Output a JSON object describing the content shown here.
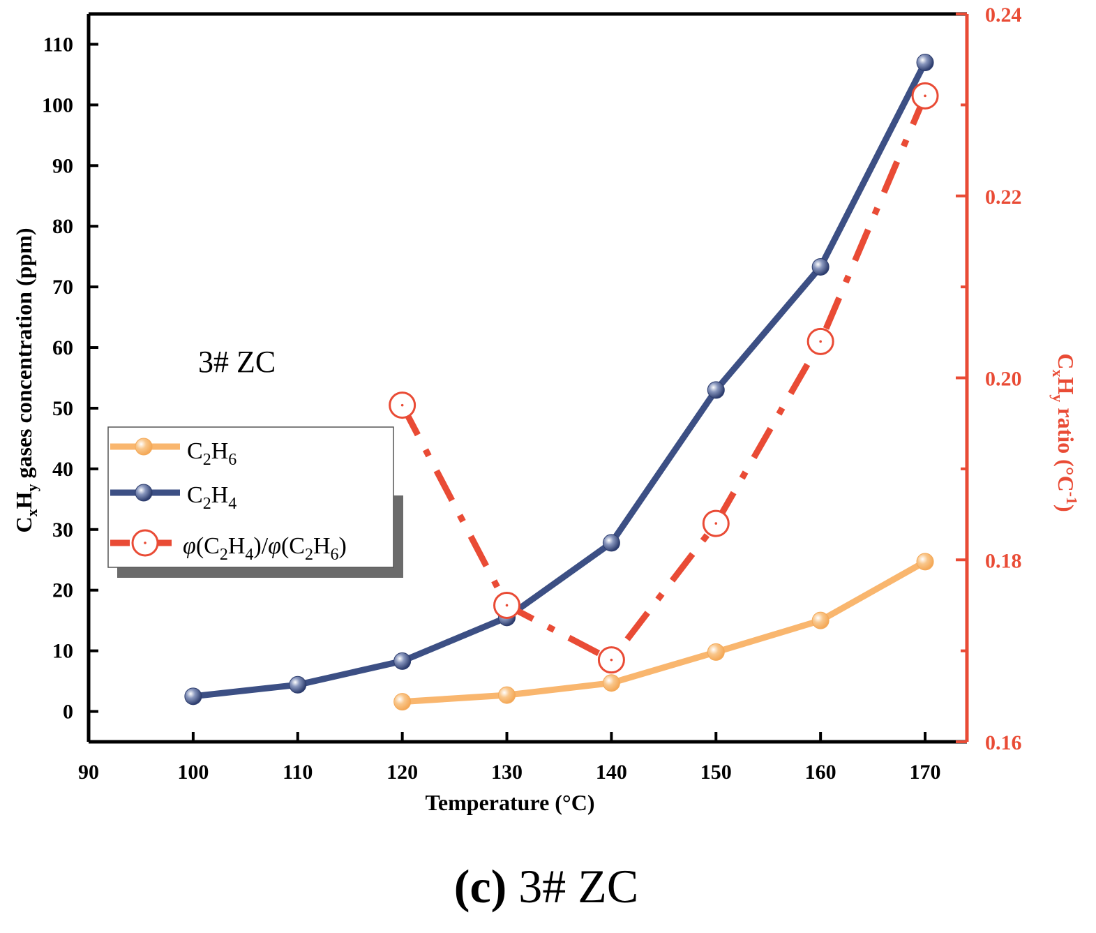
{
  "chart_data": {
    "type": "line",
    "title": "",
    "caption": {
      "prefix": "(c)",
      "text": "3# ZC"
    },
    "annotation": "3# ZC",
    "x": [
      100,
      110,
      120,
      130,
      140,
      150,
      160,
      170
    ],
    "xlabel": "Temperature (°C)",
    "xlim": [
      90,
      174
    ],
    "xticks": [
      90,
      100,
      110,
      120,
      130,
      140,
      150,
      160,
      170
    ],
    "ylabel": {
      "base": "C",
      "sub1": "x",
      "mid": "H",
      "sub2": "y",
      "rest": " gases concentration (ppm)"
    },
    "ylim": [
      -5,
      115
    ],
    "yticks": [
      0,
      10,
      20,
      30,
      40,
      50,
      60,
      70,
      80,
      90,
      100,
      110
    ],
    "y2label": {
      "base": "C",
      "sub1": "x",
      "mid": "H",
      "sub2": "y",
      "rest": " ratio (°C",
      "sup": "-1",
      "close": ")"
    },
    "y2lim": [
      0.16,
      0.24
    ],
    "y2ticks": [
      "0.16",
      "0.18",
      "0.20",
      "0.22",
      "0.24"
    ],
    "series": [
      {
        "name": "C2H6",
        "label": {
          "a": "C",
          "b": "2",
          "c": "H",
          "d": "6"
        },
        "axis": "left",
        "color": "#f9b66e",
        "style": "solid",
        "x": [
          120,
          130,
          140,
          150,
          160,
          170
        ],
        "values": [
          1.6,
          2.7,
          4.7,
          9.8,
          15.0,
          24.7
        ]
      },
      {
        "name": "C2H4",
        "label": {
          "a": "C",
          "b": "2",
          "c": "H",
          "d": "4"
        },
        "axis": "left",
        "color": "#3c4f84",
        "style": "solid",
        "x": [
          100,
          110,
          120,
          130,
          140,
          150,
          160,
          170
        ],
        "values": [
          2.5,
          4.4,
          8.3,
          15.5,
          27.8,
          53.0,
          73.3,
          107.0
        ]
      },
      {
        "name": "φ(C2H4)/φ(C2H6)",
        "axis": "right",
        "color": "#e94b35",
        "style": "dashdot",
        "x": [
          120,
          130,
          140,
          150,
          160,
          170
        ],
        "values": [
          0.197,
          0.175,
          0.169,
          0.184,
          0.204,
          0.231
        ]
      }
    ],
    "legend": {
      "position": "center-left",
      "ratio_label": {
        "phi": "φ",
        "open": "(C",
        "s1": "2",
        "h": "H",
        "s2": "4",
        "mid": ")/",
        "phi2": "φ",
        "open2": "(C",
        "s3": "2",
        "h2": "H",
        "s4": "6",
        "close": ")"
      }
    },
    "colors": {
      "left_axis": "#000000",
      "right_axis": "#e94b35"
    }
  }
}
